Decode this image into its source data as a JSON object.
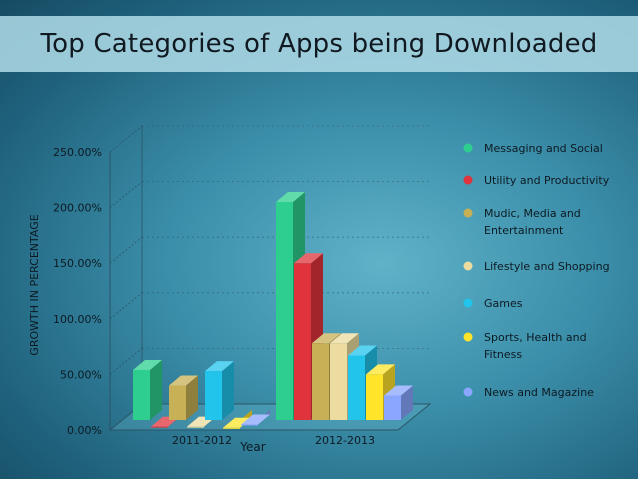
{
  "header": {
    "title": "Top Categories of Apps being Downloaded"
  },
  "chart_data": {
    "type": "bar",
    "title": "Top Categories of Apps being Downloaded",
    "xlabel": "Year",
    "ylabel": "GROWTH IN PERCENTAGE",
    "categories": [
      "2011-2012",
      "2012-2013"
    ],
    "y_ticks": [
      "0.00%",
      "50.00%",
      "100.00%",
      "150.00%",
      "200.00%",
      "250.00%"
    ],
    "ylim": [
      0,
      250
    ],
    "legend_position": "right",
    "series": [
      {
        "name": "Messaging and Social",
        "legend_lines": [
          "Messaging and Social"
        ],
        "color": "#2ecf8e",
        "values": [
          54,
          205
        ]
      },
      {
        "name": "Utility and Productivity",
        "legend_lines": [
          "Utility and Productivity"
        ],
        "color": "#e0343c",
        "values": [
          3,
          150
        ]
      },
      {
        "name": "Mudic, Media and Entertainment",
        "legend_lines": [
          "Mudic, Media and",
          "Entertainment"
        ],
        "color": "#c7b055",
        "values": [
          40,
          78
        ]
      },
      {
        "name": "Lifestyle and Shopping",
        "legend_lines": [
          "Lifestyle and Shopping"
        ],
        "color": "#ecdca0",
        "values": [
          3,
          78
        ]
      },
      {
        "name": "Games",
        "legend_lines": [
          "Games"
        ],
        "color": "#22c4ec",
        "values": [
          53,
          67
        ]
      },
      {
        "name": "Sports, Health and Fitness",
        "legend_lines": [
          "Sports, Health and",
          "Fitness"
        ],
        "color": "#ffe42a",
        "values": [
          2,
          50
        ]
      },
      {
        "name": "News and Magazine",
        "legend_lines": [
          "News and Magazine"
        ],
        "color": "#8aa6ff",
        "values": [
          5,
          31
        ]
      }
    ]
  }
}
